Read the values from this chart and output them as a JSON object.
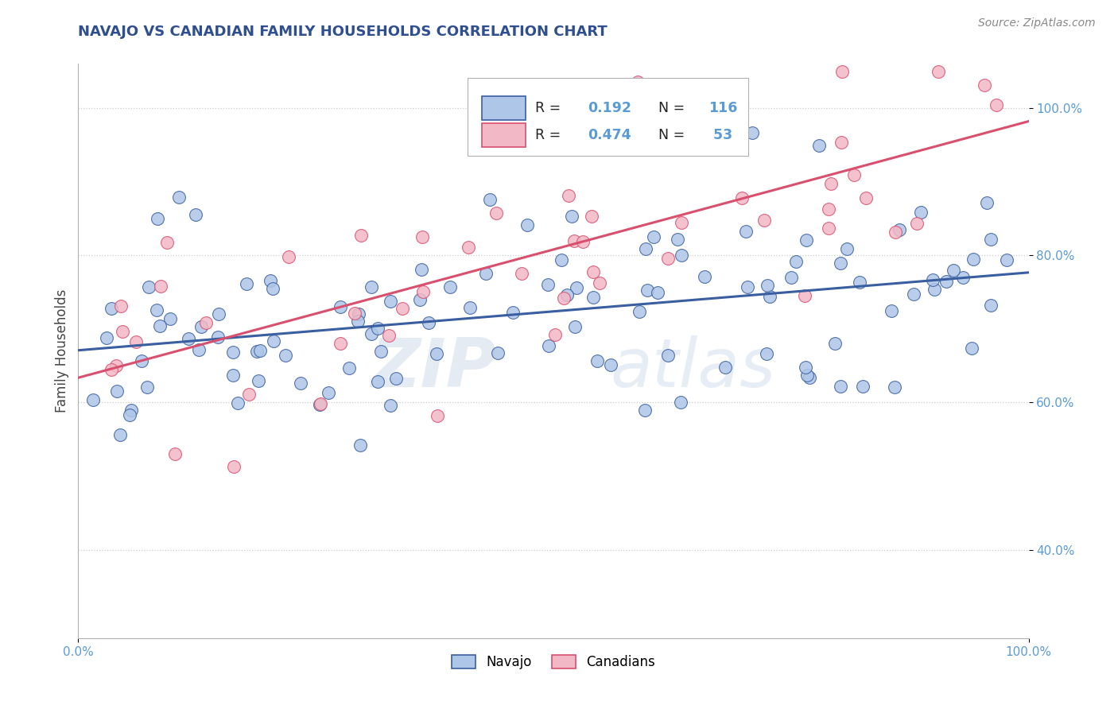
{
  "title": "NAVAJO VS CANADIAN FAMILY HOUSEHOLDS CORRELATION CHART",
  "source": "Source: ZipAtlas.com",
  "ylabel": "Family Households",
  "navajo_R": "0.192",
  "navajo_N": "116",
  "canadian_R": "0.474",
  "canadian_N": "53",
  "navajo_color": "#aec6e8",
  "canadian_color": "#f2b8c6",
  "navajo_line_color": "#3a5fa0",
  "canadian_line_color": "#d94f6e",
  "legend_navajo": "Navajo",
  "legend_canadian": "Canadians",
  "watermark_zip": "ZIP",
  "watermark_atlas": "atlas",
  "background_color": "#ffffff",
  "grid_color": "#cccccc",
  "tick_color": "#5b9bd5",
  "title_color": "#2f4f8f",
  "xlim": [
    0,
    1
  ],
  "ylim": [
    0.28,
    1.06
  ],
  "yticks": [
    0.4,
    0.6,
    0.8,
    1.0
  ],
  "ytick_labels": [
    "40.0%",
    "60.0%",
    "80.0%",
    "100.0%"
  ],
  "xticks": [
    0.0,
    1.0
  ],
  "xtick_labels": [
    "0.0%",
    "100.0%"
  ]
}
